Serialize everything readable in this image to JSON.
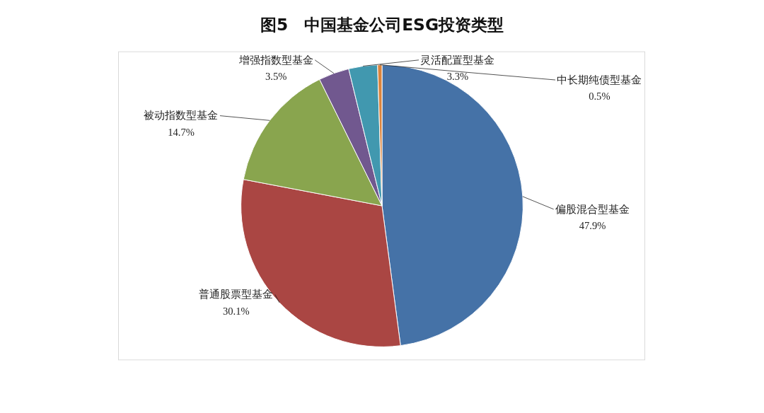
{
  "chart_data": {
    "type": "pie",
    "title": "图5　中国基金公司ESG投资类型",
    "categories": [
      "偏股混合型基金",
      "普通股票型基金",
      "被动指数型基金",
      "增强指数型基金",
      "灵活配置型基金",
      "中长期纯债型基金"
    ],
    "values": [
      47.9,
      30.1,
      14.7,
      3.5,
      3.3,
      0.5
    ],
    "value_labels": [
      "47.9%",
      "30.1%",
      "14.7%",
      "3.5%",
      "3.3%",
      "0.5%"
    ],
    "colors": [
      "#4572a7",
      "#aa4643",
      "#89a54e",
      "#71588f",
      "#4198af",
      "#db843d"
    ]
  }
}
